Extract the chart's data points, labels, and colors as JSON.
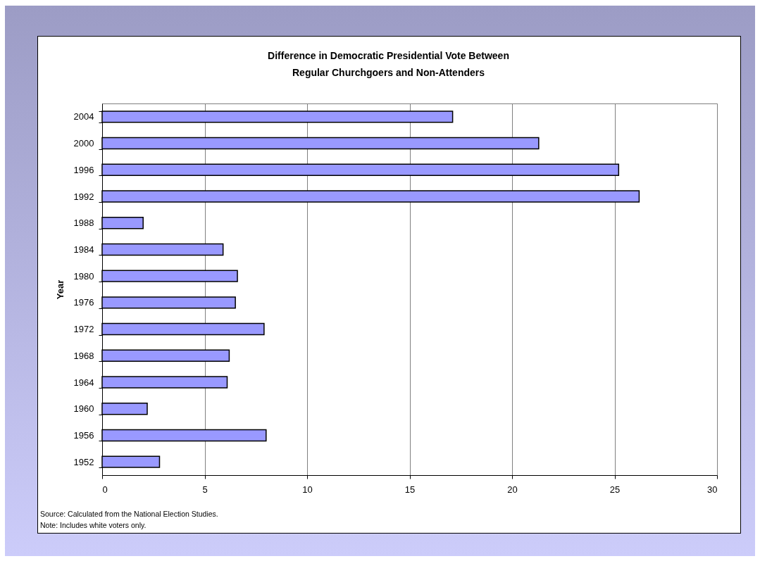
{
  "chart_data": {
    "type": "bar",
    "orientation": "horizontal",
    "title": "Difference in Democratic Presidential Vote Between Regular Churchgoers and Non-Attenders",
    "ylabel": "Year",
    "categories": [
      "2004",
      "2000",
      "1996",
      "1992",
      "1988",
      "1984",
      "1980",
      "1976",
      "1972",
      "1968",
      "1964",
      "1960",
      "1956",
      "1952"
    ],
    "values": [
      17.1,
      21.3,
      25.2,
      26.2,
      2.0,
      5.9,
      6.6,
      6.5,
      7.9,
      6.2,
      6.1,
      2.2,
      8.0,
      2.8
    ],
    "color": "#9999ff",
    "xlim": [
      0,
      30
    ],
    "xticks": [
      0,
      5,
      10,
      15,
      20,
      25,
      30
    ],
    "grid": "x",
    "annotations": [
      "Source: Calculated from the National Election Studies.",
      "Note: Includes white voters only."
    ]
  }
}
